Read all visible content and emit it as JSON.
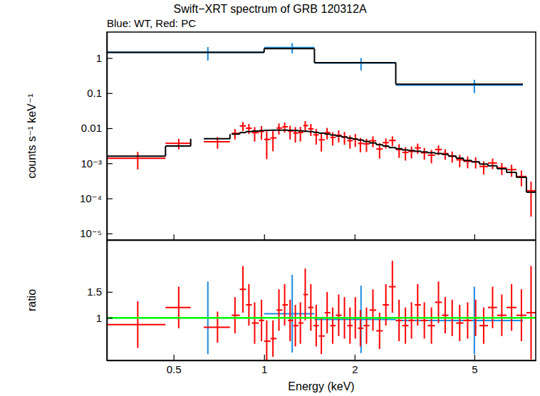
{
  "chart_data": [
    {
      "type": "errorbar",
      "title": "Swift−XRT spectrum of GRB 120312A",
      "subtitle": "Blue: WT, Red: PC",
      "y_label": "counts s⁻¹ keV⁻¹",
      "log": true,
      "xlim": [
        0.3,
        8
      ],
      "ylim": [
        6.5e-06,
        5.5
      ],
      "xticks": [
        0.5,
        1,
        2,
        5
      ],
      "yticks": [
        1,
        0.1,
        0.01,
        {
          "value": 0.001,
          "label": "10⁻³"
        },
        {
          "value": 0.0001,
          "label": "10⁻⁴"
        },
        {
          "value": 1e-05,
          "label": "10⁻⁵"
        }
      ],
      "tick_labels": "y",
      "series": [
        {
          "type": "errorbar",
          "color": "#1a8ae0",
          "x": [
            0.65,
            1.24,
            2.1,
            5.0
          ],
          "x_low": [
            0.3,
            1.0,
            1.47,
            2.74
          ],
          "x_high": [
            1.0,
            1.47,
            2.74,
            7.25
          ],
          "values": [
            1.45,
            2.0,
            0.72,
            0.17
          ],
          "errors": [
            0.6,
            0.65,
            0.28,
            0.07
          ]
        },
        {
          "type": "step",
          "color": "#000000",
          "x_low": [
            0.3,
            1.0,
            1.47,
            2.74
          ],
          "x_high": [
            1.0,
            1.47,
            2.74,
            7.25
          ],
          "values": [
            1.45,
            1.85,
            0.74,
            0.18
          ]
        },
        {
          "type": "errorbar",
          "color": "#ff0000",
          "x": [
            0.38,
            0.52,
            0.7,
            0.8,
            0.85,
            0.89,
            0.93,
            0.98,
            1.02,
            1.07,
            1.12,
            1.17,
            1.22,
            1.27,
            1.32,
            1.37,
            1.43,
            1.49,
            1.55,
            1.62,
            1.69,
            1.77,
            1.85,
            1.93,
            2.01,
            2.09,
            2.19,
            2.3,
            2.42,
            2.54,
            2.67,
            2.81,
            2.95,
            3.09,
            3.24,
            3.41,
            3.6,
            3.8,
            4.0,
            4.22,
            4.47,
            4.75,
            5.05,
            5.37,
            5.75,
            6.17,
            6.65,
            7.17,
            7.72
          ],
          "x_low": [
            0.3,
            0.47,
            0.63,
            0.78,
            0.83,
            0.87,
            0.91,
            0.96,
            1.0,
            1.05,
            1.1,
            1.15,
            1.2,
            1.25,
            1.3,
            1.35,
            1.4,
            1.46,
            1.52,
            1.59,
            1.66,
            1.73,
            1.81,
            1.89,
            1.97,
            2.05,
            2.14,
            2.24,
            2.36,
            2.48,
            2.6,
            2.74,
            2.88,
            3.02,
            3.17,
            3.32,
            3.5,
            3.7,
            3.9,
            4.1,
            4.35,
            4.6,
            4.9,
            5.2,
            5.55,
            5.95,
            6.4,
            6.9,
            7.45
          ],
          "x_high": [
            0.47,
            0.57,
            0.77,
            0.83,
            0.87,
            0.91,
            0.96,
            1.0,
            1.05,
            1.1,
            1.15,
            1.2,
            1.25,
            1.3,
            1.35,
            1.4,
            1.46,
            1.52,
            1.59,
            1.66,
            1.73,
            1.81,
            1.89,
            1.97,
            2.05,
            2.14,
            2.24,
            2.36,
            2.48,
            2.6,
            2.74,
            2.88,
            3.02,
            3.17,
            3.32,
            3.5,
            3.7,
            3.9,
            4.1,
            4.35,
            4.6,
            4.9,
            5.2,
            5.55,
            5.95,
            6.4,
            6.9,
            7.45,
            8.0
          ],
          "values": [
            0.00139,
            0.00372,
            0.0041,
            0.00714,
            0.01163,
            0.01,
            0.00747,
            0.00808,
            0.00479,
            0.00528,
            0.01012,
            0.011,
            0.00827,
            0.00731,
            0.00756,
            0.01189,
            0.0096,
            0.00646,
            0.00468,
            0.00748,
            0.00544,
            0.0063,
            0.0056,
            0.00442,
            0.0049,
            0.00368,
            0.00357,
            0.00437,
            0.00255,
            0.00388,
            0.00448,
            0.00247,
            0.00204,
            0.00219,
            0.00275,
            0.002,
            0.0017,
            0.00247,
            0.00189,
            0.0016,
            0.00126,
            0.00114,
            0.0011,
            0.00081,
            0.00102,
            0.00074,
            0.00066,
            0.00042,
            0.000165
          ],
          "errors": [
            0.00072,
            0.00124,
            0.0015,
            0.00238,
            0.00338,
            0.0032,
            0.00332,
            0.0034,
            0.00348,
            0.00308,
            0.00352,
            0.00352,
            0.00348,
            0.00344,
            0.00336,
            0.0041,
            0.0036,
            0.00304,
            0.00252,
            0.00272,
            0.00224,
            0.0024,
            0.00224,
            0.00182,
            0.00196,
            0.00161,
            0.00147,
            0.00152,
            0.00119,
            0.00124,
            0.0014,
            0.00104,
            0.00084,
            0.00081,
            0.00088,
            0.00074,
            0.0007,
            0.00076,
            0.00063,
            0.00056,
            0.00049,
            0.00042,
            0.00039,
            0.00033,
            0.00034,
            0.00028,
            0.00025,
            0.0002,
            0.000135
          ]
        },
        {
          "type": "step",
          "color": "#000000",
          "x_low": [
            0.3,
            0.47,
            0.63,
            0.78,
            0.83,
            0.87,
            0.91,
            0.96,
            1.0,
            1.05,
            1.1,
            1.15,
            1.2,
            1.25,
            1.3,
            1.35,
            1.4,
            1.46,
            1.52,
            1.59,
            1.66,
            1.73,
            1.81,
            1.89,
            1.97,
            2.05,
            2.14,
            2.24,
            2.36,
            2.48,
            2.6,
            2.74,
            2.88,
            3.02,
            3.17,
            3.32,
            3.5,
            3.7,
            3.9,
            4.1,
            4.35,
            4.6,
            4.9,
            5.2,
            5.55,
            5.95,
            6.4,
            6.9,
            7.45
          ],
          "x_high": [
            0.47,
            0.57,
            0.77,
            0.83,
            0.87,
            0.91,
            0.96,
            1.0,
            1.05,
            1.1,
            1.15,
            1.2,
            1.25,
            1.3,
            1.35,
            1.4,
            1.46,
            1.52,
            1.59,
            1.66,
            1.73,
            1.81,
            1.89,
            1.97,
            2.05,
            2.14,
            2.24,
            2.36,
            2.48,
            2.6,
            2.74,
            2.88,
            3.02,
            3.17,
            3.32,
            3.5,
            3.7,
            3.9,
            4.1,
            4.35,
            4.6,
            4.9,
            5.2,
            5.55,
            5.95,
            6.4,
            6.9,
            7.45,
            8.0
          ],
          "values": [
            0.0016,
            0.0031,
            0.005,
            0.0068,
            0.0075,
            0.008,
            0.0083,
            0.0085,
            0.0087,
            0.0088,
            0.0088,
            0.0088,
            0.0087,
            0.0086,
            0.0084,
            0.0082,
            0.008,
            0.0076,
            0.0072,
            0.0068,
            0.0064,
            0.006,
            0.0056,
            0.0052,
            0.0049,
            0.0046,
            0.0042,
            0.0038,
            0.0034,
            0.0031,
            0.0028,
            0.0026,
            0.0024,
            0.0023,
            0.0022,
            0.0021,
            0.002,
            0.0019,
            0.0018,
            0.0016,
            0.0014,
            0.0012,
            0.0011,
            0.00095,
            0.00085,
            0.0007,
            0.00055,
            0.0004,
            0.00015
          ]
        }
      ]
    },
    {
      "type": "errorbar",
      "x_label": "Energy (keV)",
      "y_label": "ratio",
      "log": "x",
      "xlim": [
        0.3,
        8
      ],
      "ylim": [
        0.18,
        2.5
      ],
      "xticks": [
        0.5,
        1,
        2,
        5
      ],
      "yticks": [
        1,
        1.5
      ],
      "series": [
        {
          "type": "errorbar",
          "color": "#1a8ae0",
          "x": [
            0.65,
            1.24,
            2.1,
            5.0
          ],
          "x_low": [
            0.3,
            1.0,
            1.47,
            2.74
          ],
          "x_high": [
            1.0,
            1.47,
            2.74,
            7.25
          ],
          "values": [
            1.0,
            1.08,
            0.97,
            0.95
          ],
          "errors": [
            0.7,
            0.75,
            0.65,
            0.65
          ]
        },
        {
          "type": "errorbar",
          "color": "#ff0000",
          "x": [
            0.38,
            0.52,
            0.7,
            0.8,
            0.85,
            0.89,
            0.93,
            0.98,
            1.02,
            1.07,
            1.12,
            1.17,
            1.22,
            1.27,
            1.32,
            1.37,
            1.43,
            1.49,
            1.55,
            1.62,
            1.69,
            1.77,
            1.85,
            1.93,
            2.01,
            2.09,
            2.19,
            2.3,
            2.42,
            2.54,
            2.67,
            2.81,
            2.95,
            3.09,
            3.24,
            3.41,
            3.6,
            3.8,
            4.0,
            4.22,
            4.47,
            4.75,
            5.05,
            5.37,
            5.75,
            6.17,
            6.65,
            7.17,
            7.72
          ],
          "x_low": [
            0.3,
            0.47,
            0.63,
            0.78,
            0.83,
            0.87,
            0.91,
            0.96,
            1.0,
            1.05,
            1.1,
            1.15,
            1.2,
            1.25,
            1.3,
            1.35,
            1.4,
            1.46,
            1.52,
            1.59,
            1.66,
            1.73,
            1.81,
            1.89,
            1.97,
            2.05,
            2.14,
            2.24,
            2.36,
            2.48,
            2.6,
            2.74,
            2.88,
            3.02,
            3.17,
            3.32,
            3.5,
            3.7,
            3.9,
            4.1,
            4.35,
            4.6,
            4.9,
            5.2,
            5.55,
            5.95,
            6.4,
            6.9,
            7.45
          ],
          "x_high": [
            0.47,
            0.57,
            0.77,
            0.83,
            0.87,
            0.91,
            0.96,
            1.0,
            1.05,
            1.1,
            1.15,
            1.2,
            1.25,
            1.3,
            1.35,
            1.4,
            1.46,
            1.52,
            1.59,
            1.66,
            1.73,
            1.81,
            1.89,
            1.97,
            2.05,
            2.14,
            2.24,
            2.36,
            2.48,
            2.6,
            2.74,
            2.88,
            3.02,
            3.17,
            3.32,
            3.5,
            3.7,
            3.9,
            4.1,
            4.35,
            4.6,
            4.9,
            5.2,
            5.55,
            5.95,
            6.4,
            6.9,
            7.45,
            8.0
          ],
          "values": [
            0.87,
            1.2,
            0.82,
            1.05,
            1.55,
            1.25,
            0.9,
            0.95,
            0.55,
            0.6,
            1.15,
            1.25,
            0.95,
            0.85,
            0.9,
            1.45,
            1.2,
            0.85,
            0.65,
            1.1,
            0.85,
            1.05,
            1.0,
            0.85,
            1.0,
            0.8,
            0.85,
            1.15,
            0.75,
            1.25,
            1.6,
            0.95,
            0.85,
            0.95,
            1.25,
            0.95,
            0.85,
            1.3,
            1.05,
            1.0,
            0.9,
            0.95,
            1.0,
            0.85,
            1.2,
            1.05,
            1.2,
            1.05,
            1.1
          ],
          "errors": [
            0.45,
            0.4,
            0.3,
            0.35,
            0.45,
            0.4,
            0.4,
            0.4,
            0.4,
            0.35,
            0.4,
            0.4,
            0.4,
            0.4,
            0.4,
            0.5,
            0.45,
            0.4,
            0.35,
            0.4,
            0.35,
            0.4,
            0.4,
            0.35,
            0.4,
            0.35,
            0.35,
            0.4,
            0.35,
            0.4,
            0.5,
            0.4,
            0.35,
            0.35,
            0.4,
            0.35,
            0.35,
            0.4,
            0.35,
            0.35,
            0.35,
            0.35,
            0.35,
            0.35,
            0.4,
            0.4,
            0.45,
            0.5,
            0.9
          ]
        },
        {
          "type": "hline",
          "color": "#00ff00",
          "values": [
            1
          ]
        }
      ]
    }
  ]
}
